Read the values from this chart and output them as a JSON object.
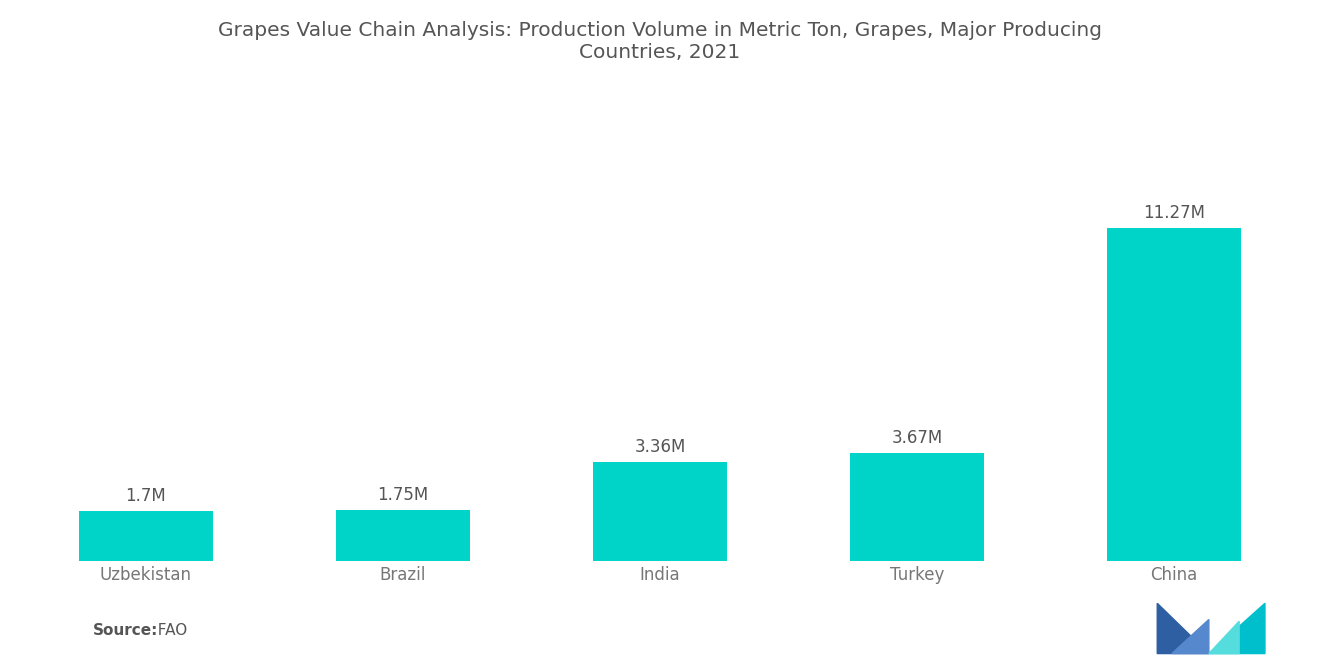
{
  "title": "Grapes Value Chain Analysis: Production Volume in Metric Ton, Grapes, Major Producing\nCountries, 2021",
  "categories": [
    "Uzbekistan",
    "Brazil",
    "India",
    "Turkey",
    "China"
  ],
  "values": [
    1.7,
    1.75,
    3.36,
    3.67,
    11.27
  ],
  "labels": [
    "1.7M",
    "1.75M",
    "3.36M",
    "3.67M",
    "11.27M"
  ],
  "bar_color": "#00D4C8",
  "background_color": "#FFFFFF",
  "title_color": "#555555",
  "label_color": "#555555",
  "tick_color": "#777777",
  "source_label_bold": "Source:",
  "source_label_light": "  FAO",
  "ylim": [
    0,
    16.0
  ],
  "title_fontsize": 14.5,
  "label_fontsize": 12,
  "tick_fontsize": 12,
  "source_fontsize": 11,
  "bar_width": 0.52,
  "logo_left_color": "#2E5FA3",
  "logo_right_color": "#00BFCC"
}
